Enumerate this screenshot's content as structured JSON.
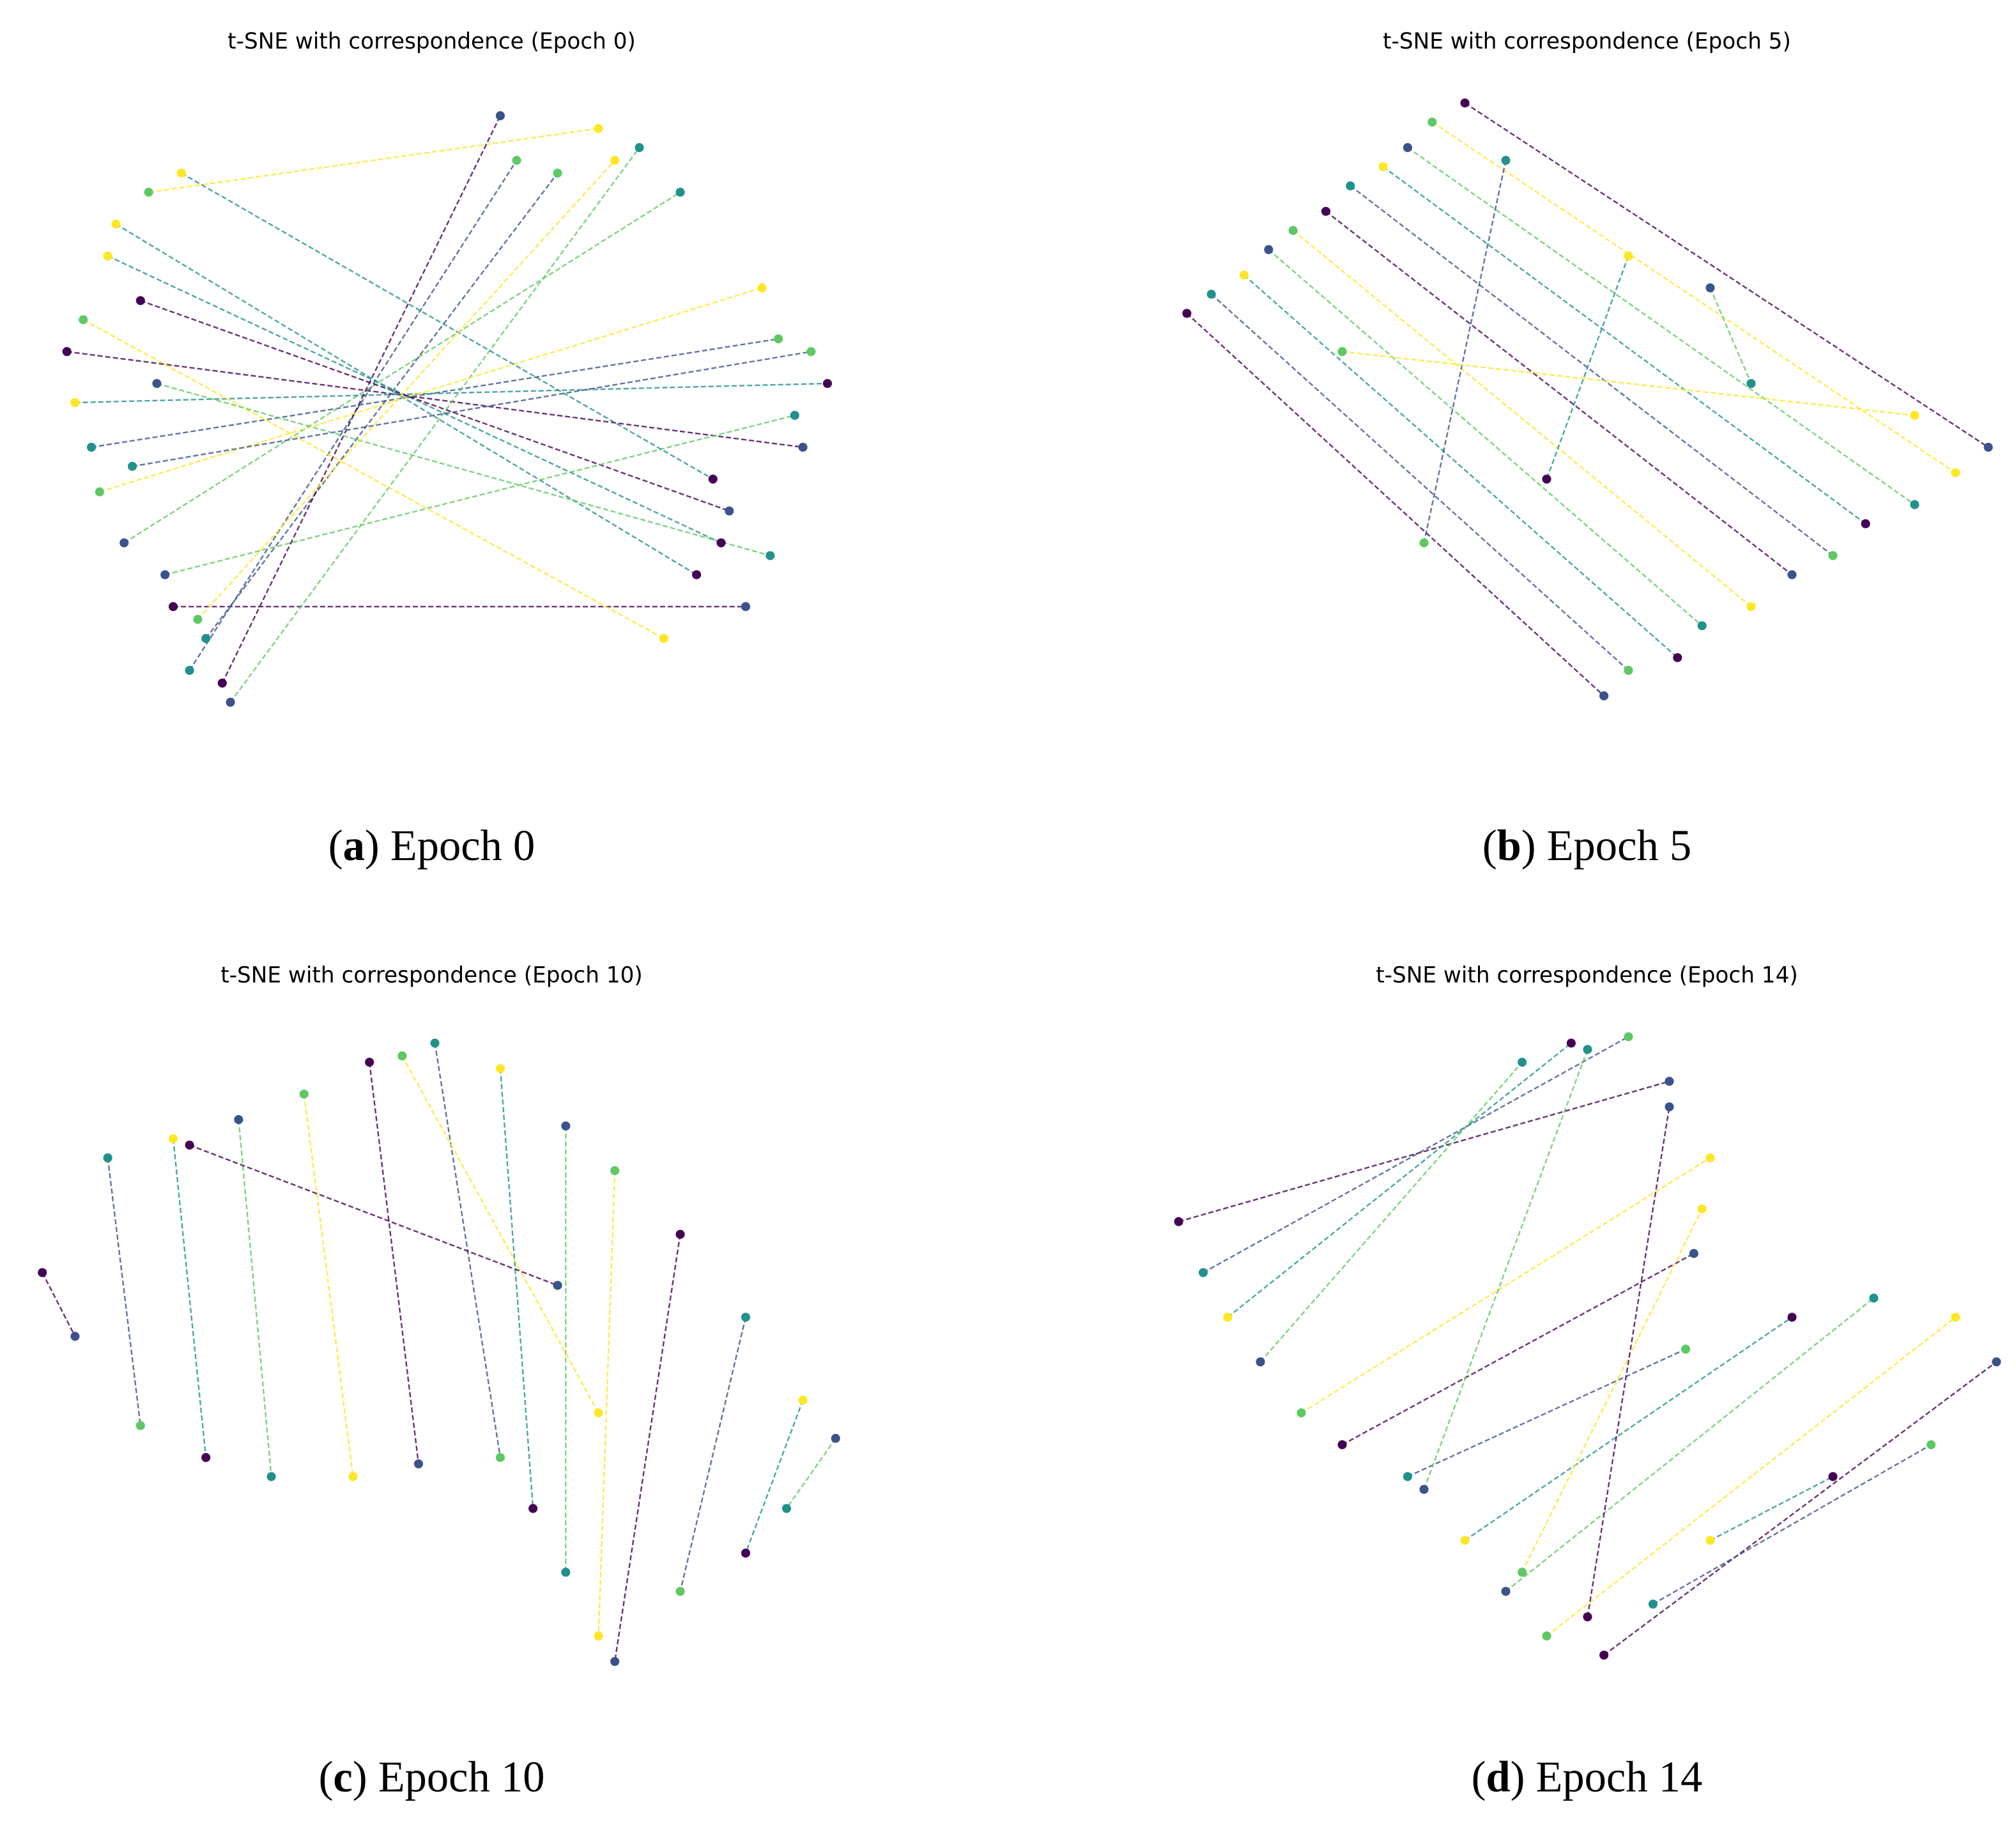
{
  "chart_data": [
    {
      "type": "scatter",
      "title": "t-SNE with correspondence (Epoch 0)",
      "caption": [
        "(",
        "a",
        ") Epoch 0"
      ],
      "xlim": [
        0,
        100
      ],
      "ylim": [
        0,
        100
      ],
      "colors": [
        "#440154",
        "#3b528b",
        "#21918c",
        "#5ec962",
        "#fde725"
      ],
      "x": [
        5,
        95,
        8,
        92,
        10,
        85,
        12,
        80,
        15,
        70,
        18,
        88,
        20,
        60,
        6,
        98,
        25,
        75,
        9,
        90,
        14,
        86,
        22,
        65,
        11,
        82,
        17,
        94,
        7,
        78,
        24,
        58,
        13,
        96,
        19,
        84,
        16,
        91,
        21,
        72
      ],
      "values": [
        60,
        45,
        45,
        62,
        75,
        30,
        30,
        85,
        85,
        95,
        20,
        20,
        10,
        90,
        52,
        55,
        5,
        92,
        38,
        70,
        68,
        35,
        15,
        88,
        80,
        25,
        25,
        50,
        65,
        15,
        8,
        97,
        42,
        60,
        88,
        40,
        55,
        28,
        18,
        90
      ]
    },
    {
      "type": "scatter",
      "title": "t-SNE with correspondence (Epoch 5)",
      "caption": [
        "(",
        "b",
        ") Epoch 5"
      ],
      "xlim": [
        0,
        100
      ],
      "ylim": [
        0,
        100
      ],
      "colors": [
        "#440154",
        "#3b528b",
        "#21918c",
        "#5ec962",
        "#fde725"
      ],
      "x": [
        1,
        52,
        4,
        55,
        8,
        61,
        11,
        64,
        14,
        70,
        18,
        75,
        21,
        80,
        25,
        84,
        28,
        90,
        31,
        95,
        35,
        99,
        40,
        30,
        55,
        45,
        65,
        70,
        20,
        90
      ],
      "values": [
        66,
        6,
        69,
        10,
        72,
        12,
        76,
        17,
        79,
        20,
        82,
        25,
        86,
        28,
        89,
        33,
        92,
        36,
        96,
        41,
        99,
        45,
        90,
        30,
        75,
        40,
        70,
        55,
        60,
        50
      ]
    },
    {
      "type": "scatter",
      "title": "t-SNE with correspondence (Epoch 10)",
      "caption": [
        "(",
        "c",
        ") Epoch 10"
      ],
      "xlim": [
        0,
        100
      ],
      "ylim": [
        0,
        100
      ],
      "colors": [
        "#440154",
        "#3b528b",
        "#21918c",
        "#5ec962",
        "#fde725"
      ],
      "x": [
        2,
        6,
        10,
        14,
        18,
        22,
        26,
        30,
        34,
        40,
        42,
        48,
        50,
        58,
        58,
        62,
        66,
        66,
        72,
        70,
        80,
        72,
        88,
        80,
        95,
        88,
        99,
        93,
        46,
        70,
        20,
        65
      ],
      "values": [
        62,
        52,
        80,
        38,
        83,
        33,
        86,
        30,
        90,
        30,
        95,
        32,
        98,
        33,
        94,
        25,
        85,
        15,
        78,
        5,
        68,
        1,
        55,
        12,
        42,
        18,
        36,
        25,
        96,
        40,
        82,
        60
      ]
    },
    {
      "type": "scatter",
      "title": "t-SNE with correspondence (Epoch 14)",
      "caption": [
        "(",
        "d",
        ") Epoch 14"
      ],
      "xlim": [
        0,
        100
      ],
      "ylim": [
        0,
        100
      ],
      "colors": [
        "#440154",
        "#3b528b",
        "#21918c",
        "#5ec962",
        "#fde725"
      ],
      "x": [
        0,
        60,
        3,
        55,
        6,
        48,
        10,
        42,
        15,
        65,
        20,
        63,
        28,
        62,
        35,
        75,
        40,
        85,
        45,
        95,
        52,
        100,
        58,
        92,
        65,
        80,
        30,
        50,
        42,
        64,
        50,
        60
      ],
      "values": [
        70,
        92,
        62,
        99,
        55,
        98,
        48,
        95,
        40,
        80,
        35,
        65,
        30,
        50,
        20,
        55,
        12,
        58,
        5,
        55,
        2,
        48,
        10,
        35,
        20,
        30,
        28,
        97,
        15,
        72,
        8,
        88
      ]
    }
  ]
}
